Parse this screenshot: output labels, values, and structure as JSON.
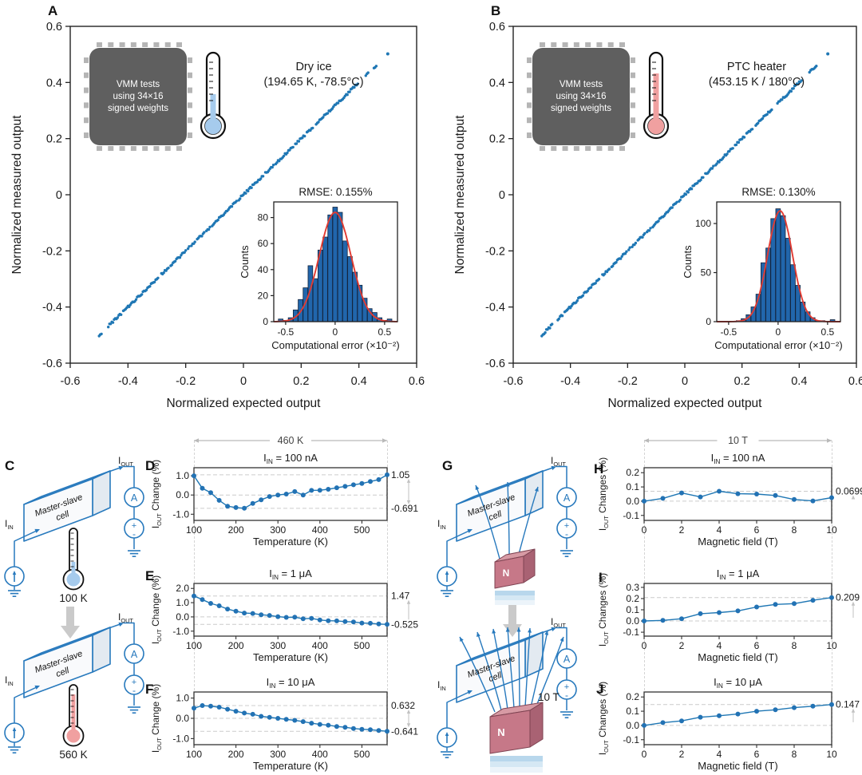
{
  "panels": {
    "A": {
      "letter": "A"
    },
    "B": {
      "letter": "B"
    },
    "C": {
      "letter": "C"
    },
    "D": {
      "letter": "D"
    },
    "E": {
      "letter": "E"
    },
    "F": {
      "letter": "F"
    },
    "G": {
      "letter": "G"
    },
    "H": {
      "letter": "H"
    },
    "I": {
      "letter": "I"
    },
    "J": {
      "letter": "J"
    }
  },
  "colors": {
    "point_blue": "#1f77b4",
    "bar_blue": "#2166ac",
    "curve_red": "#e23b32",
    "wire_blue": "#2779bd",
    "chip_gray": "#5f5f5f",
    "magnet_front": "#c67888",
    "magnet_top": "#d79aa4",
    "magnet_right": "#a96273",
    "thermo_cold": "#a6cbed",
    "thermo_hot": "#f0a0a0",
    "dash_gray": "#cccccc",
    "arrow_gray": "#c2c2c2"
  },
  "circuit": {
    "cell_label": [
      "Master-slave",
      "cell"
    ],
    "i_in": {
      "pre": "I",
      "sub": "IN",
      "rest": ""
    },
    "i_out": {
      "pre": "I",
      "sub": "OUT",
      "rest": ""
    },
    "ammeter": "A",
    "vsrc_plus": "+",
    "vsrc_minus": "-",
    "temp_cold": "100 K",
    "temp_hot": "560 K",
    "magnet_pole": "N",
    "field_strength": "10 T"
  },
  "chart_data": [
    {
      "id": "A",
      "type": "scatter",
      "xlabel": "Normalized expected output",
      "ylabel": "Normalized measured output",
      "xlim": [
        -0.6,
        0.6
      ],
      "ylim": [
        -0.6,
        0.6
      ],
      "xtick_labels": [
        "-0.6",
        "-0.4",
        "-0.2",
        "0",
        "0.2",
        "0.4",
        "0.6"
      ],
      "xtick_values": [
        -0.6,
        -0.4,
        -0.2,
        0,
        0.2,
        0.4,
        0.6
      ],
      "ytick_labels": [
        "0.6",
        "0.4",
        "0.2",
        "0",
        "-0.2",
        "-0.4",
        "-0.6"
      ],
      "ytick_values": [
        0.6,
        0.4,
        0.2,
        0,
        -0.2,
        -0.4,
        -0.6
      ],
      "diagonal": {
        "from": -0.5,
        "to": 0.46,
        "n": 240,
        "gaps": [
          [
            -0.49,
            -0.472
          ],
          [
            0.398,
            0.414
          ],
          [
            0.432,
            0.448
          ]
        ]
      },
      "isolated_points": [
        [
          0.5,
          0.502
        ]
      ],
      "chip_lines": [
        "VMM tests",
        "using 34×16",
        "signed weights"
      ],
      "condition": [
        "Dry ice",
        "(194.65 K, -78.5°C)"
      ],
      "thermo": "cold",
      "inset": {
        "type": "histogram",
        "title": "RMSE: 0.155%",
        "ylabel": "Counts",
        "xlabel": "Computational error (×10⁻²)",
        "ytick_values": [
          0,
          20,
          40,
          60,
          80
        ],
        "ymax": 92,
        "xtick_labels": [
          "-0.5",
          "0",
          "0.5"
        ],
        "xtick_values": [
          -0.5,
          0,
          0.5
        ],
        "xlim": [
          -0.62,
          0.63
        ],
        "bin_centers": [
          -0.55,
          -0.5,
          -0.45,
          -0.4,
          -0.35,
          -0.3,
          -0.25,
          -0.2,
          -0.15,
          -0.1,
          -0.05,
          0,
          0.05,
          0.1,
          0.15,
          0.2,
          0.25,
          0.3,
          0.35,
          0.4,
          0.45,
          0.5,
          0.55
        ],
        "counts": [
          2,
          1,
          3,
          9,
          17,
          26,
          43,
          33,
          55,
          65,
          82,
          88,
          84,
          62,
          50,
          38,
          28,
          18,
          10,
          7,
          3,
          1,
          2
        ],
        "gauss": {
          "amp": 84,
          "mu": 0,
          "sigma": 0.16
        }
      }
    },
    {
      "id": "B",
      "type": "scatter",
      "xlabel": "Normalized expected output",
      "ylabel": "Normalized measured output",
      "xlim": [
        -0.6,
        0.6
      ],
      "ylim": [
        -0.6,
        0.6
      ],
      "xtick_labels": [
        "-0.6",
        "-0.4",
        "-0.2",
        "0",
        "0.2",
        "0.4",
        "0.6"
      ],
      "xtick_values": [
        -0.6,
        -0.4,
        -0.2,
        0,
        0.2,
        0.4,
        0.6
      ],
      "ytick_labels": [
        "0.6",
        "0.4",
        "0.2",
        "0",
        "-0.2",
        "-0.4",
        "-0.6"
      ],
      "ytick_values": [
        0.6,
        0.4,
        0.2,
        0,
        -0.2,
        -0.4,
        -0.6
      ],
      "diagonal": {
        "from": -0.5,
        "to": 0.46,
        "n": 240,
        "gaps": [
          [
            -0.46,
            -0.446
          ],
          [
            0.306,
            0.322
          ],
          [
            0.41,
            0.428
          ]
        ]
      },
      "isolated_points": [
        [
          0.5,
          0.502
        ]
      ],
      "chip_lines": [
        "VMM tests",
        "using 34×16",
        "signed weights"
      ],
      "condition": [
        "PTC heater",
        "(453.15 K / 180°C)"
      ],
      "thermo": "hot",
      "inset": {
        "type": "histogram",
        "title": "RMSE: 0.130%",
        "ylabel": "Counts",
        "xlabel": "Computational error (×10⁻²)",
        "ytick_values": [
          0,
          50,
          100
        ],
        "ymax": 122,
        "xtick_labels": [
          "-0.5",
          "0",
          "0.5"
        ],
        "xtick_values": [
          -0.5,
          0,
          0.5
        ],
        "xlim": [
          -0.62,
          0.63
        ],
        "bin_centers": [
          -0.4,
          -0.35,
          -0.3,
          -0.25,
          -0.2,
          -0.15,
          -0.1,
          -0.05,
          0,
          0.05,
          0.1,
          0.15,
          0.2,
          0.25,
          0.3,
          0.35,
          0.4,
          0.45,
          0.5,
          0.55
        ],
        "counts": [
          1,
          3,
          7,
          15,
          28,
          60,
          75,
          105,
          115,
          108,
          85,
          58,
          37,
          20,
          10,
          4,
          1,
          1,
          0,
          2
        ],
        "gauss": {
          "amp": 113,
          "mu": 0.02,
          "sigma": 0.125
        }
      }
    },
    {
      "id": "D",
      "type": "line",
      "span_label": "460 K",
      "title": {
        "pre": "I",
        "sub": "IN",
        "rest": " = 100 nA"
      },
      "ylabel": {
        "pre": "I",
        "sub": "OUT",
        "rest": " Change (%)"
      },
      "xlabel": "Temperature (K)",
      "x": [
        100,
        120,
        140,
        160,
        180,
        200,
        220,
        240,
        260,
        280,
        300,
        320,
        340,
        360,
        380,
        400,
        420,
        440,
        460,
        480,
        500,
        520,
        540,
        560
      ],
      "values": [
        1.0,
        0.35,
        0.12,
        -0.28,
        -0.58,
        -0.65,
        -0.691,
        -0.44,
        -0.25,
        -0.08,
        0.0,
        0.05,
        0.18,
        0.0,
        0.24,
        0.25,
        0.3,
        0.38,
        0.45,
        0.53,
        0.6,
        0.7,
        0.8,
        1.05
      ],
      "xlim": [
        100,
        560
      ],
      "xtick_values": [
        100,
        200,
        300,
        400,
        500
      ],
      "ytick_labels": [
        "1.0",
        "0.0",
        "-1.0"
      ],
      "ytick_values": [
        1.0,
        0.0,
        -1.0
      ],
      "ylim": [
        -1.32,
        1.42
      ],
      "right_labels": [
        {
          "v": 1.05,
          "text": "1.05"
        },
        {
          "v": -0.691,
          "text": "-0.691"
        }
      ],
      "arrow": "both"
    },
    {
      "id": "E",
      "type": "line",
      "title": {
        "pre": "I",
        "sub": "IN",
        "rest": " = 1 μA"
      },
      "ylabel": {
        "pre": "I",
        "sub": "OUT",
        "rest": " Change (%)"
      },
      "xlabel": "Temperature (K)",
      "x": [
        100,
        120,
        140,
        160,
        180,
        200,
        220,
        240,
        260,
        280,
        300,
        320,
        340,
        360,
        380,
        400,
        420,
        440,
        460,
        480,
        500,
        520,
        540,
        560
      ],
      "values": [
        1.47,
        1.22,
        0.95,
        0.78,
        0.55,
        0.4,
        0.27,
        0.24,
        0.15,
        0.1,
        0.02,
        -0.03,
        -0.02,
        -0.13,
        -0.1,
        -0.22,
        -0.27,
        -0.28,
        -0.33,
        -0.35,
        -0.43,
        -0.45,
        -0.5,
        -0.525
      ],
      "xlim": [
        100,
        560
      ],
      "xtick_values": [
        100,
        200,
        300,
        400,
        500
      ],
      "ytick_labels": [
        "2.0",
        "1.0",
        "0.0",
        "-1.0"
      ],
      "ytick_values": [
        2.0,
        1.0,
        0.0,
        -1.0
      ],
      "ylim": [
        -1.35,
        2.35
      ],
      "right_labels": [
        {
          "v": 1.47,
          "text": "1.47"
        },
        {
          "v": -0.525,
          "text": "-0.525"
        }
      ],
      "arrow": "up"
    },
    {
      "id": "F",
      "type": "line",
      "title": {
        "pre": "I",
        "sub": "IN",
        "rest": " = 10 μA"
      },
      "ylabel": {
        "pre": "I",
        "sub": "OUT",
        "rest": " Change (%)"
      },
      "xlabel": "Temperature (K)",
      "x": [
        100,
        120,
        140,
        160,
        180,
        200,
        220,
        240,
        260,
        280,
        300,
        320,
        340,
        360,
        380,
        400,
        420,
        440,
        460,
        480,
        500,
        520,
        540,
        560
      ],
      "values": [
        0.5,
        0.632,
        0.6,
        0.55,
        0.45,
        0.35,
        0.26,
        0.2,
        0.1,
        0.05,
        0.0,
        -0.05,
        -0.1,
        -0.16,
        -0.24,
        -0.3,
        -0.34,
        -0.4,
        -0.44,
        -0.5,
        -0.54,
        -0.56,
        -0.6,
        -0.641
      ],
      "xlim": [
        100,
        560
      ],
      "xtick_values": [
        100,
        200,
        300,
        400,
        500
      ],
      "ytick_labels": [
        "1.0",
        "0.0",
        "-1.0"
      ],
      "ytick_values": [
        1.0,
        0.0,
        -1.0
      ],
      "ylim": [
        -1.3,
        1.3
      ],
      "right_labels": [
        {
          "v": 0.632,
          "text": "0.632"
        },
        {
          "v": -0.641,
          "text": "-0.641"
        }
      ],
      "arrow": "both"
    },
    {
      "id": "H",
      "type": "line",
      "span_label": "10 T",
      "title": {
        "pre": "I",
        "sub": "IN",
        "rest": " = 100 nA"
      },
      "ylabel": {
        "pre": "I",
        "sub": "OUT",
        "rest": " Changes (%)"
      },
      "xlabel": "Magnetic field (T)",
      "x": [
        0,
        1,
        2,
        3,
        4,
        5,
        6,
        7,
        8,
        9,
        10
      ],
      "values": [
        0.0,
        0.02,
        0.058,
        0.03,
        0.0699,
        0.052,
        0.05,
        0.04,
        0.012,
        0.002,
        0.025
      ],
      "xlim": [
        0,
        10
      ],
      "xtick_values": [
        0,
        2,
        4,
        6,
        8,
        10
      ],
      "ytick_labels": [
        "0.2",
        "0.1",
        "0.0",
        "-0.1"
      ],
      "ytick_values": [
        0.2,
        0.1,
        0.0,
        -0.1
      ],
      "ylim": [
        -0.135,
        0.235
      ],
      "right_labels": [
        {
          "v": 0.0699,
          "text": "0.0699"
        }
      ],
      "arrow": "up",
      "zero_ref": true
    },
    {
      "id": "I",
      "type": "line",
      "title": {
        "pre": "I",
        "sub": "IN",
        "rest": " = 1 μA"
      },
      "ylabel": {
        "pre": "I",
        "sub": "OUT",
        "rest": " Changes (%)"
      },
      "xlabel": "Magnetic field (T)",
      "x": [
        0,
        1,
        2,
        3,
        4,
        5,
        6,
        7,
        8,
        9,
        10
      ],
      "values": [
        0.0,
        0.005,
        0.02,
        0.065,
        0.075,
        0.09,
        0.125,
        0.148,
        0.155,
        0.185,
        0.209
      ],
      "xlim": [
        0,
        10
      ],
      "xtick_values": [
        0,
        2,
        4,
        6,
        8,
        10
      ],
      "ytick_labels": [
        "0.3",
        "0.2",
        "0.1",
        "0.0",
        "-0.1"
      ],
      "ytick_values": [
        0.3,
        0.2,
        0.1,
        0.0,
        -0.1
      ],
      "ylim": [
        -0.135,
        0.335
      ],
      "right_labels": [
        {
          "v": 0.209,
          "text": "0.209"
        }
      ],
      "arrow": "up",
      "zero_ref": true
    },
    {
      "id": "J",
      "type": "line",
      "title": {
        "pre": "I",
        "sub": "IN",
        "rest": " = 10 μA"
      },
      "ylabel": {
        "pre": "I",
        "sub": "OUT",
        "rest": " Changes (%)"
      },
      "xlabel": "Magnetic field (T)",
      "x": [
        0,
        1,
        2,
        3,
        4,
        5,
        6,
        7,
        8,
        9,
        10
      ],
      "values": [
        0.0,
        0.02,
        0.032,
        0.058,
        0.068,
        0.08,
        0.1,
        0.11,
        0.125,
        0.135,
        0.147
      ],
      "xlim": [
        0,
        10
      ],
      "xtick_values": [
        0,
        2,
        4,
        6,
        8,
        10
      ],
      "ytick_labels": [
        "0.2",
        "0.1",
        "0.0",
        "-0.1"
      ],
      "ytick_values": [
        0.2,
        0.1,
        0.0,
        -0.1
      ],
      "ylim": [
        -0.135,
        0.235
      ],
      "right_labels": [
        {
          "v": 0.147,
          "text": "0.147"
        }
      ],
      "arrow": "up",
      "zero_ref": true
    }
  ]
}
